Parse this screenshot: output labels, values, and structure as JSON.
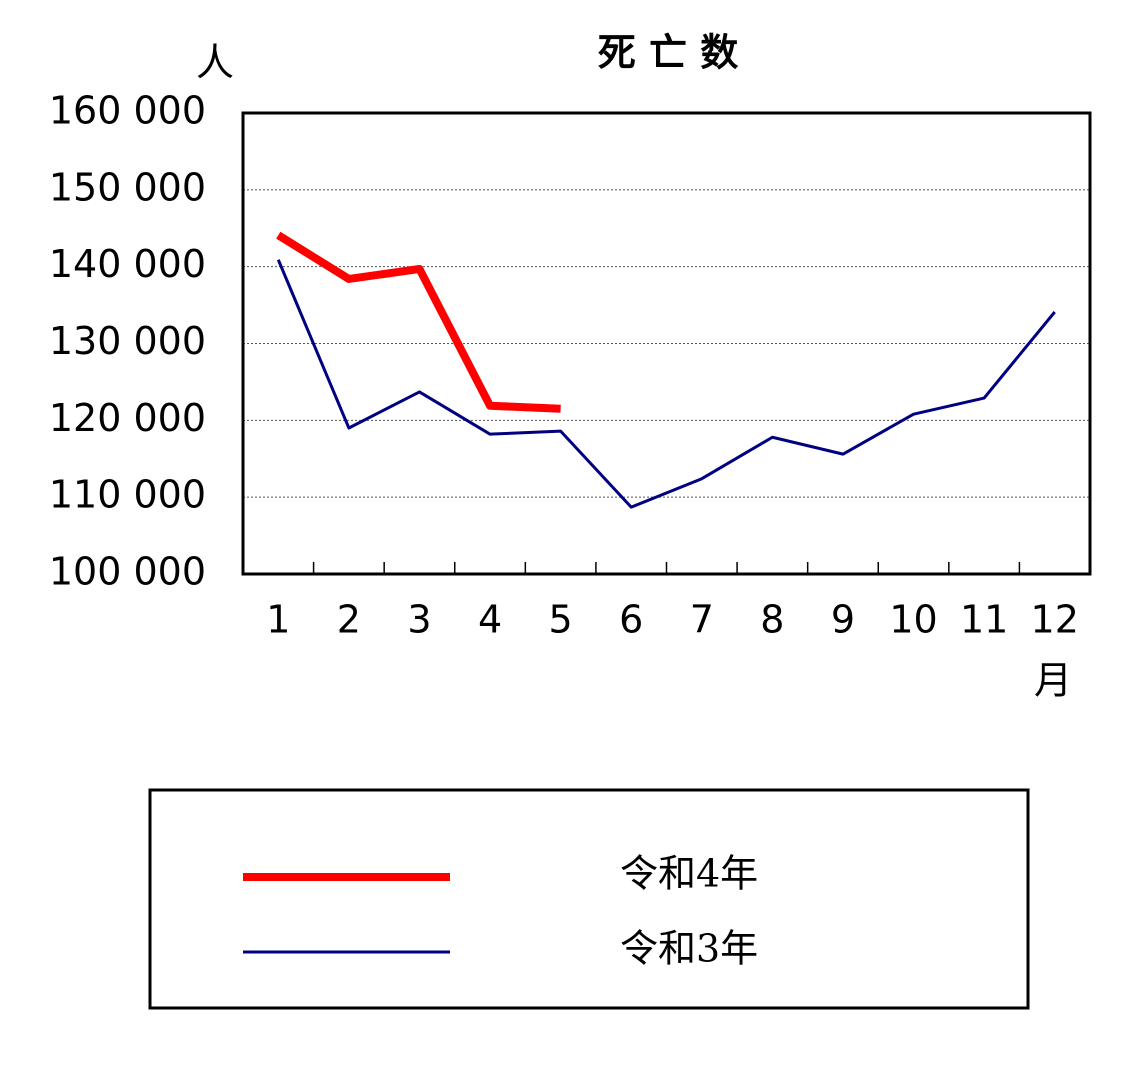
{
  "chart_data": {
    "type": "line",
    "title": "死 亡 数",
    "y_unit": "人",
    "x_unit": "月",
    "categories": [
      "1",
      "2",
      "3",
      "4",
      "5",
      "6",
      "7",
      "8",
      "9",
      "10",
      "11",
      "12"
    ],
    "series": [
      {
        "name": "令和4年",
        "color": "#ff0000",
        "values": [
          144100,
          138400,
          139700,
          121900,
          121500,
          null,
          null,
          null,
          null,
          null,
          null,
          null
        ]
      },
      {
        "name": "令和3年",
        "color": "#000080",
        "values": [
          140900,
          119000,
          123700,
          118200,
          118600,
          108700,
          112400,
          117800,
          115600,
          120800,
          122900,
          134100
        ]
      }
    ],
    "ylim": [
      100000,
      160000
    ],
    "yticks": [
      {
        "value": 100000,
        "label": "100 000"
      },
      {
        "value": 110000,
        "label": "110 000"
      },
      {
        "value": 120000,
        "label": "120 000"
      },
      {
        "value": 130000,
        "label": "130 000"
      },
      {
        "value": 140000,
        "label": "140 000"
      },
      {
        "value": 150000,
        "label": "150 000"
      },
      {
        "value": 160000,
        "label": "160 000"
      }
    ],
    "grid": true
  }
}
